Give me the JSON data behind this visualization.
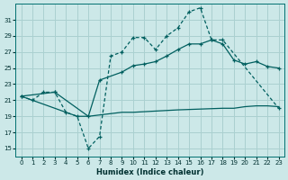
{
  "xlabel": "Humidex (Indice chaleur)",
  "bg_color": "#cce8e8",
  "grid_color": "#aad0d0",
  "line_color": "#005f5f",
  "xlim": [
    -0.5,
    23.5
  ],
  "ylim": [
    14,
    33
  ],
  "yticks": [
    15,
    17,
    19,
    21,
    23,
    25,
    27,
    29,
    31
  ],
  "xticks": [
    0,
    1,
    2,
    3,
    4,
    5,
    6,
    7,
    8,
    9,
    10,
    11,
    12,
    13,
    14,
    15,
    16,
    17,
    18,
    19,
    20,
    21,
    22,
    23
  ],
  "line1_x": [
    0,
    1,
    2,
    3,
    4,
    5,
    6,
    7,
    8,
    9,
    10,
    11,
    12,
    13,
    14,
    15,
    16,
    17,
    18,
    23
  ],
  "line1_y": [
    21.5,
    21.0,
    22.0,
    22.0,
    19.5,
    19.0,
    15.0,
    16.5,
    26.5,
    27.0,
    28.8,
    28.8,
    27.3,
    29.0,
    30.0,
    32.0,
    32.5,
    28.5,
    28.5,
    20.0
  ],
  "line2_x": [
    0,
    3,
    6,
    7,
    9,
    10,
    11,
    12,
    13,
    14,
    15,
    16,
    17,
    18,
    19,
    20,
    21,
    22,
    23
  ],
  "line2_y": [
    21.5,
    22.0,
    19.0,
    23.5,
    24.5,
    25.3,
    25.5,
    25.8,
    26.5,
    27.3,
    28.0,
    28.0,
    28.5,
    28.0,
    26.0,
    25.5,
    25.8,
    25.2,
    25.0
  ],
  "line3_x": [
    0,
    3,
    4,
    5,
    6,
    9,
    10,
    14,
    18,
    19,
    20,
    21,
    22,
    23
  ],
  "line3_y": [
    21.5,
    20.0,
    19.5,
    19.0,
    19.0,
    19.5,
    19.5,
    19.8,
    20.0,
    20.0,
    20.2,
    20.3,
    20.3,
    20.2
  ]
}
